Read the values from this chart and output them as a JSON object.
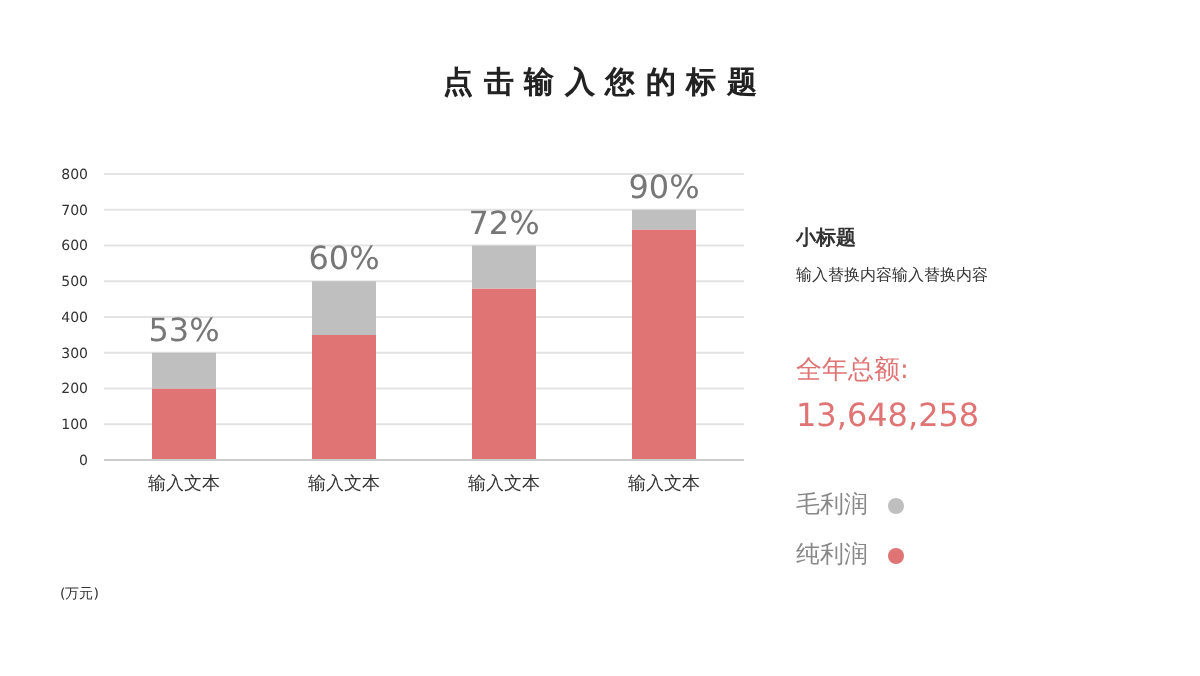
{
  "chart_data": {
    "type": "bar",
    "title": "点 击 输 入 您 的 标 题",
    "categories": [
      "输入文本",
      "输入文本",
      "输入文本",
      "输入文本"
    ],
    "series": [
      {
        "name": "纯利润",
        "color": "#e07474",
        "values": [
          200,
          350,
          480,
          645
        ]
      },
      {
        "name": "毛利润",
        "color": "#bfbfbf",
        "values": [
          100,
          150,
          120,
          55
        ]
      }
    ],
    "stacked": true,
    "ylim": [
      0,
      800
    ],
    "yticks": [
      0,
      100,
      200,
      300,
      400,
      500,
      600,
      700,
      800
    ],
    "grid": "y",
    "legend": "right",
    "annotations": [
      "小标题",
      "输入替换内容输入替换内容",
      "全年总额:",
      "13,648,258",
      "(万元)",
      "53%",
      "60%",
      "72%",
      "90%"
    ]
  }
}
